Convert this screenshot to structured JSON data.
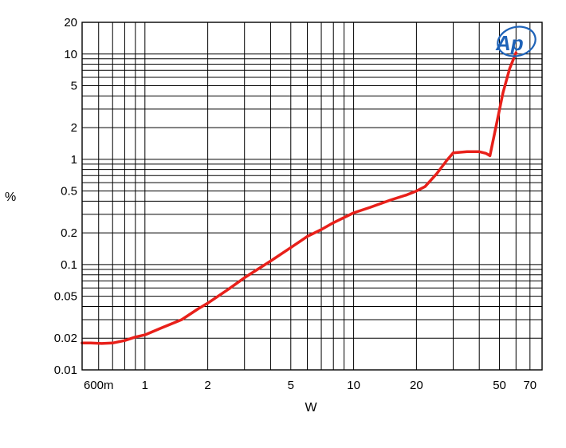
{
  "chart_data": {
    "type": "line",
    "title": "",
    "xlabel": "W",
    "ylabel": "%",
    "x_scale": "log",
    "y_scale": "log",
    "xlim": [
      0.5,
      80
    ],
    "ylim": [
      0.01,
      20
    ],
    "grid": true,
    "x_tick_labels": [
      {
        "value": 0.6,
        "label": "600m"
      },
      {
        "value": 1,
        "label": "1"
      },
      {
        "value": 2,
        "label": "2"
      },
      {
        "value": 5,
        "label": "5"
      },
      {
        "value": 10,
        "label": "10"
      },
      {
        "value": 20,
        "label": "20"
      },
      {
        "value": 50,
        "label": "50"
      },
      {
        "value": 70,
        "label": "70"
      }
    ],
    "y_tick_labels": [
      {
        "value": 0.01,
        "label": "0.01"
      },
      {
        "value": 0.02,
        "label": "0.02"
      },
      {
        "value": 0.05,
        "label": "0.05"
      },
      {
        "value": 0.1,
        "label": "0.1"
      },
      {
        "value": 0.2,
        "label": "0.2"
      },
      {
        "value": 0.5,
        "label": "0.5"
      },
      {
        "value": 1,
        "label": "1"
      },
      {
        "value": 2,
        "label": "2"
      },
      {
        "value": 5,
        "label": "5"
      },
      {
        "value": 10,
        "label": "10"
      },
      {
        "value": 20,
        "label": "20"
      }
    ],
    "series": [
      {
        "color": "#e8201a",
        "x": [
          0.5,
          0.55,
          0.62,
          0.7,
          0.8,
          0.9,
          1.0,
          1.2,
          1.5,
          1.8,
          2.0,
          2.5,
          3.0,
          4.0,
          5.0,
          6.0,
          7.0,
          8.0,
          10.0,
          12.0,
          15.0,
          18.0,
          20.0,
          22.0,
          25.0,
          28.0,
          30.0,
          35.0,
          40.0,
          43.0,
          45.0,
          48.0,
          52.0,
          56.0,
          60.0
        ],
        "y": [
          0.018,
          0.018,
          0.0178,
          0.018,
          0.019,
          0.0205,
          0.0215,
          0.025,
          0.03,
          0.038,
          0.043,
          0.058,
          0.075,
          0.108,
          0.145,
          0.185,
          0.215,
          0.25,
          0.31,
          0.35,
          0.41,
          0.46,
          0.5,
          0.55,
          0.73,
          0.98,
          1.15,
          1.18,
          1.18,
          1.14,
          1.08,
          2.0,
          4.3,
          7.3,
          10.3
        ]
      }
    ],
    "logo": "Ap",
    "logo_color": "#1f63b8"
  }
}
